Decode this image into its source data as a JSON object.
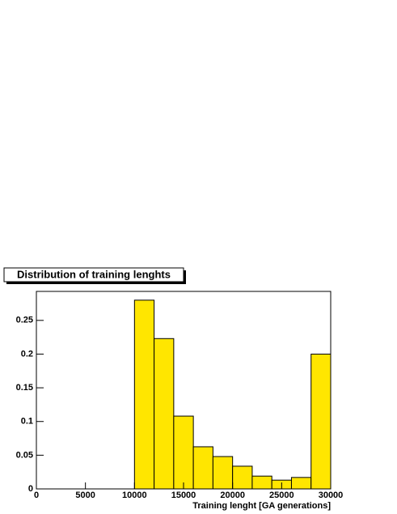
{
  "chart_data": {
    "type": "histogram",
    "title": "Distribution of training lenghts",
    "x_label": "Training lenght [GA generations]",
    "bins": [
      10000,
      12000,
      14000,
      16000,
      18000,
      20000,
      22000,
      24000,
      26000,
      28000,
      30000
    ],
    "values": [
      0.28,
      0.223,
      0.108,
      0.0625,
      0.048,
      0.0337,
      0.019,
      0.013,
      0.017,
      0.2
    ],
    "color": "#ffe600",
    "xlim": [
      0,
      30000
    ],
    "xticks": [
      0,
      5000,
      10000,
      15000,
      20000,
      25000,
      30000
    ],
    "ylim": [
      0,
      0.293
    ],
    "yticks": [
      0,
      0.05,
      0.1,
      0.15,
      0.2,
      0.25
    ]
  }
}
